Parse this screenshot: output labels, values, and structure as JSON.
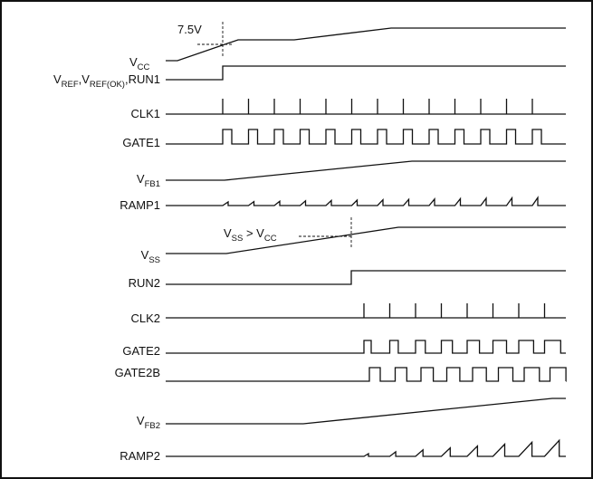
{
  "diagram": {
    "annotations": {
      "vcc_threshold": "7.5V",
      "vss_gt_vcc": {
        "v1": "V",
        "s1": "SS",
        "op": " > V",
        "s2": "CC"
      }
    },
    "signals": [
      {
        "id": "vcc",
        "name": "V",
        "sub": "CC"
      },
      {
        "id": "vref",
        "parts": [
          {
            "t": "V"
          },
          {
            "s": "REF"
          },
          {
            "t": ","
          },
          {
            "t": "V"
          },
          {
            "s": "REF(OK)"
          },
          {
            "t": ",RUN1"
          }
        ]
      },
      {
        "id": "clk1",
        "name": "CLK1"
      },
      {
        "id": "gate1",
        "name": "GATE1"
      },
      {
        "id": "vfb1",
        "name": "V",
        "sub": "FB1"
      },
      {
        "id": "ramp1",
        "name": "RAMP1"
      },
      {
        "id": "vss",
        "name": "V",
        "sub": "SS"
      },
      {
        "id": "run2",
        "name": "RUN2"
      },
      {
        "id": "clk2",
        "name": "CLK2"
      },
      {
        "id": "gate2",
        "name": "GATE2"
      },
      {
        "id": "gate2b",
        "name": "GATE2B"
      },
      {
        "id": "vfb2",
        "name": "V",
        "sub": "FB2"
      },
      {
        "id": "ramp2",
        "name": "RAMP2"
      }
    ]
  }
}
